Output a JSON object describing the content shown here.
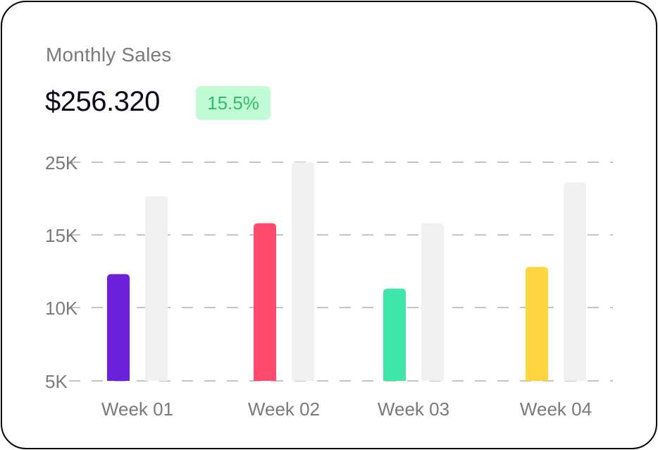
{
  "card": {
    "title": "Monthly Sales",
    "amount": "$256.320",
    "change_badge": "15.5%"
  },
  "colors": {
    "badge_bg": "#c2fcd6",
    "badge_text": "#2fbe66",
    "grid": "#c4c4c4"
  },
  "chart_data": {
    "type": "bar",
    "title": "",
    "xlabel": "",
    "ylabel": "",
    "categories": [
      "Week 01",
      "Week 02",
      "Week 03",
      "Week 04"
    ],
    "y_ticks": [
      5000,
      10000,
      15000,
      25000
    ],
    "y_tick_labels": [
      "5K",
      "10K",
      "15K",
      "25K"
    ],
    "ylim": [
      5000,
      25000
    ],
    "grid": "dashed horizontal",
    "series": [
      {
        "values": [
          12300,
          16600,
          11300,
          12800
        ],
        "colors": [
          "#6a21d9",
          "#ff4a6e",
          "#3fe6aa",
          "#ffd540"
        ]
      },
      {
        "values": [
          20300,
          25000,
          16600,
          22200
        ],
        "colors": [
          "#f0f0f0",
          "#f0f0f0",
          "#f0f0f0",
          "#f0f0f0"
        ]
      }
    ]
  }
}
